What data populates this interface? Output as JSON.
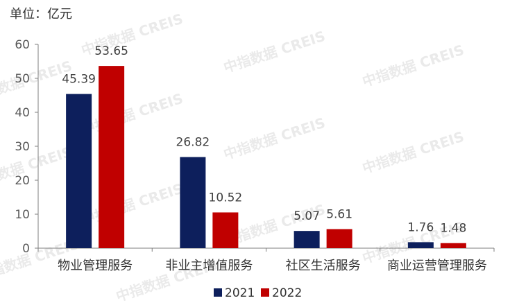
{
  "chart_data": {
    "type": "bar",
    "unit_label": "单位：亿元",
    "watermark": "中指数据 CREIS",
    "categories": [
      "物业管理服务",
      "非业主增值服务",
      "社区生活服务",
      "商业运营管理服务"
    ],
    "series": [
      {
        "name": "2021",
        "values": [
          45.39,
          26.82,
          5.07,
          1.76
        ],
        "labels": [
          "45.39",
          "26.82",
          "5.07",
          "1.76"
        ],
        "color": "#0d1f5c"
      },
      {
        "name": "2022",
        "values": [
          53.65,
          10.52,
          5.61,
          1.48
        ],
        "labels": [
          "53.65",
          "10.52",
          "5.61",
          "1.48"
        ],
        "color": "#c00000"
      }
    ],
    "ylim": [
      0,
      60
    ],
    "yticks": [
      "0",
      "10",
      "20",
      "30",
      "40",
      "50",
      "60"
    ],
    "grid": false,
    "legend_position": "bottom-center"
  }
}
